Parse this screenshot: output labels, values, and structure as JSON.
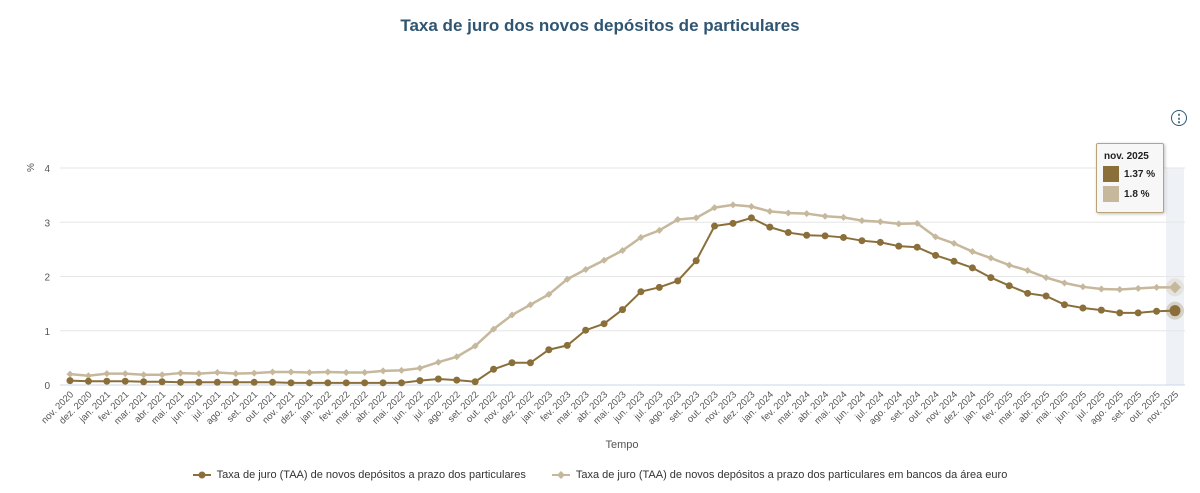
{
  "chart_data": {
    "type": "line",
    "title": "Taxa de juro dos novos depósitos de particulares",
    "xlabel": "Tempo",
    "ylabel": "%",
    "ylim": [
      0,
      4
    ],
    "yticks": [
      "0",
      "1",
      "2",
      "3",
      "4"
    ],
    "grid": true,
    "legend_position": "bottom",
    "categories": [
      "nov. 2020",
      "dez. 2020",
      "jan. 2021",
      "fev. 2021",
      "mar. 2021",
      "abr. 2021",
      "mai. 2021",
      "jun. 2021",
      "jul. 2021",
      "ago. 2021",
      "set. 2021",
      "out. 2021",
      "nov. 2021",
      "dez. 2021",
      "jan. 2022",
      "fev. 2022",
      "mar. 2022",
      "abr. 2022",
      "mai. 2022",
      "jun. 2022",
      "jul. 2022",
      "ago. 2022",
      "set. 2022",
      "out. 2022",
      "nov. 2022",
      "dez. 2022",
      "jan. 2023",
      "fev. 2023",
      "mar. 2023",
      "abr. 2023",
      "mai. 2023",
      "jun. 2023",
      "jul. 2023",
      "ago. 2023",
      "set. 2023",
      "out. 2023",
      "nov. 2023",
      "dez. 2023",
      "jan. 2024",
      "fev. 2024",
      "mar. 2024",
      "abr. 2024",
      "mai. 2024",
      "jun. 2024",
      "jul. 2024",
      "ago. 2024",
      "set. 2024",
      "out. 2024",
      "nov. 2024",
      "dez. 2024",
      "jan. 2025",
      "fev. 2025",
      "mar. 2025",
      "abr. 2025",
      "mai. 2025",
      "jun. 2025",
      "jul. 2025",
      "ago. 2025",
      "set. 2025",
      "out. 2025",
      "nov. 2025"
    ],
    "series": [
      {
        "name": "Taxa de juro (TAA) de novos depósitos a prazo dos particulares",
        "color": "#8b6f3a",
        "marker": "circle",
        "values": [
          0.08,
          0.07,
          0.07,
          0.07,
          0.06,
          0.06,
          0.05,
          0.05,
          0.05,
          0.05,
          0.05,
          0.05,
          0.04,
          0.04,
          0.04,
          0.04,
          0.04,
          0.04,
          0.04,
          0.08,
          0.11,
          0.09,
          0.06,
          0.29,
          0.41,
          0.41,
          0.65,
          0.73,
          1.01,
          1.13,
          1.39,
          1.72,
          1.8,
          1.92,
          2.29,
          2.93,
          2.98,
          3.08,
          2.91,
          2.81,
          2.76,
          2.75,
          2.72,
          2.66,
          2.63,
          2.56,
          2.54,
          2.39,
          2.28,
          2.16,
          1.98,
          1.83,
          1.69,
          1.64,
          1.48,
          1.42,
          1.38,
          1.33,
          1.33,
          1.36,
          1.37
        ]
      },
      {
        "name": "Taxa de juro (TAA) de novos depósitos a prazo dos particulares em bancos da área euro",
        "color": "#c6b89c",
        "marker": "diamond",
        "values": [
          0.2,
          0.17,
          0.21,
          0.21,
          0.19,
          0.19,
          0.22,
          0.21,
          0.23,
          0.21,
          0.22,
          0.24,
          0.24,
          0.23,
          0.24,
          0.23,
          0.23,
          0.26,
          0.27,
          0.31,
          0.42,
          0.52,
          0.72,
          1.03,
          1.29,
          1.48,
          1.67,
          1.95,
          2.13,
          2.3,
          2.48,
          2.72,
          2.85,
          3.05,
          3.08,
          3.27,
          3.32,
          3.29,
          3.2,
          3.17,
          3.16,
          3.11,
          3.09,
          3.03,
          3.01,
          2.97,
          2.98,
          2.73,
          2.61,
          2.46,
          2.34,
          2.21,
          2.11,
          1.98,
          1.88,
          1.81,
          1.77,
          1.76,
          1.78,
          1.8,
          1.8
        ]
      }
    ]
  },
  "tooltip": {
    "date": "nov. 2025",
    "value1": "1.37 %",
    "value2": "1.8 %"
  },
  "icons": {
    "menu": "vertical-ellipsis-icon"
  }
}
